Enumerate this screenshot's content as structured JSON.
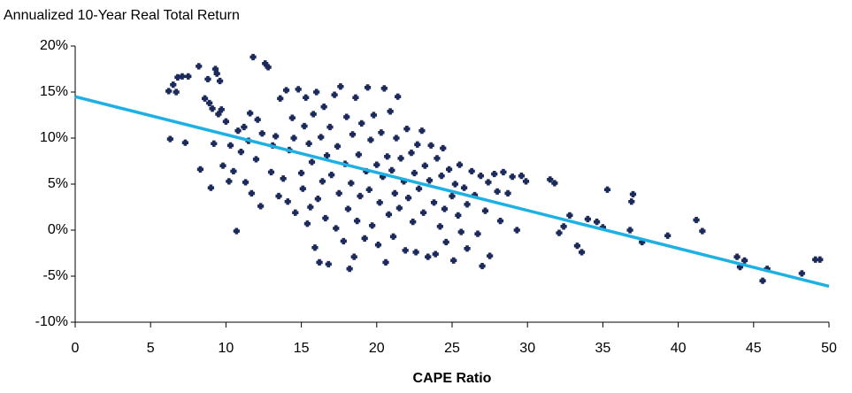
{
  "chart_data": {
    "type": "scatter",
    "title": "Annualized 10-Year Real Total Return",
    "x_label": "CAPE Ratio",
    "xlim": [
      0,
      50
    ],
    "xticks": [
      0,
      5,
      10,
      15,
      20,
      25,
      30,
      35,
      40,
      45,
      50
    ],
    "ylim": [
      -10,
      20
    ],
    "yticks": [
      {
        "value": -10,
        "label": "-10%"
      },
      {
        "value": -5,
        "label": "-5%"
      },
      {
        "value": 0,
        "label": "0%"
      },
      {
        "value": 5,
        "label": "5%"
      },
      {
        "value": 10,
        "label": "10%"
      },
      {
        "value": 15,
        "label": "15%"
      },
      {
        "value": 20,
        "label": "20%"
      }
    ],
    "grid": false,
    "series": [
      {
        "color": "#1b2a5a",
        "x": [
          6.2,
          6.3,
          6.5,
          6.7,
          6.8,
          7.1,
          7.3,
          7.5,
          8.2,
          8.3,
          8.6,
          8.8,
          8.9,
          9.0,
          9.1,
          9.2,
          9.3,
          9.4,
          9.5,
          9.6,
          9.7,
          9.8,
          10.0,
          10.2,
          10.3,
          10.5,
          10.7,
          10.8,
          11.0,
          11.2,
          11.3,
          11.5,
          11.6,
          11.7,
          11.8,
          12.0,
          12.1,
          12.3,
          12.4,
          12.6,
          12.8,
          13.0,
          13.1,
          13.3,
          13.5,
          13.6,
          13.8,
          14.0,
          14.1,
          14.2,
          14.4,
          14.5,
          14.6,
          14.8,
          15.0,
          15.1,
          15.2,
          15.3,
          15.4,
          15.5,
          15.6,
          15.7,
          15.8,
          15.9,
          16.0,
          16.1,
          16.2,
          16.3,
          16.4,
          16.5,
          16.6,
          16.7,
          16.8,
          16.9,
          17.0,
          17.2,
          17.3,
          17.4,
          17.5,
          17.6,
          17.8,
          17.9,
          18.0,
          18.1,
          18.2,
          18.3,
          18.4,
          18.5,
          18.6,
          18.7,
          18.8,
          18.9,
          19.0,
          19.2,
          19.3,
          19.4,
          19.5,
          19.6,
          19.7,
          19.8,
          20.0,
          20.1,
          20.2,
          20.3,
          20.4,
          20.5,
          20.6,
          20.7,
          20.8,
          20.9,
          21.0,
          21.1,
          21.2,
          21.3,
          21.4,
          21.5,
          21.6,
          21.8,
          21.9,
          22.0,
          22.1,
          22.3,
          22.4,
          22.5,
          22.6,
          22.7,
          22.8,
          23.0,
          23.1,
          23.2,
          23.4,
          23.5,
          23.6,
          23.8,
          23.9,
          24.0,
          24.2,
          24.3,
          24.4,
          24.5,
          24.6,
          24.8,
          25.0,
          25.1,
          25.2,
          25.4,
          25.5,
          25.6,
          25.8,
          26.0,
          26.0,
          26.3,
          26.5,
          26.7,
          26.9,
          27.0,
          27.2,
          27.4,
          27.5,
          27.8,
          28.0,
          28.2,
          28.4,
          28.7,
          29.0,
          29.3,
          29.6,
          29.9,
          31.5,
          31.8,
          32.1,
          32.4,
          32.8,
          33.3,
          33.6,
          34.0,
          34.6,
          35.0,
          35.3,
          36.8,
          36.9,
          37.0,
          37.6,
          39.3,
          41.2,
          41.6,
          43.9,
          44.1,
          44.4,
          45.6,
          45.9,
          48.2,
          49.1,
          49.4
        ],
        "values": [
          15.1,
          9.9,
          15.8,
          15.0,
          16.6,
          16.7,
          9.5,
          16.7,
          17.8,
          6.6,
          14.3,
          16.4,
          13.8,
          4.6,
          13.2,
          9.4,
          17.5,
          17.0,
          12.6,
          16.2,
          13.1,
          7.0,
          11.8,
          5.3,
          9.2,
          6.4,
          -0.1,
          10.8,
          8.5,
          11.2,
          5.2,
          9.7,
          12.7,
          4.0,
          18.8,
          7.7,
          12.0,
          2.6,
          10.5,
          18.1,
          17.7,
          6.3,
          9.2,
          10.2,
          3.7,
          14.3,
          5.6,
          15.2,
          3.1,
          8.7,
          12.2,
          10.0,
          1.9,
          15.3,
          6.2,
          4.5,
          11.3,
          14.4,
          0.7,
          9.4,
          2.5,
          7.4,
          12.6,
          -1.9,
          15.0,
          3.4,
          -3.5,
          10.1,
          5.3,
          13.4,
          1.3,
          8.1,
          -3.7,
          11.2,
          6.0,
          14.7,
          0.2,
          9.1,
          4.0,
          15.6,
          -1.2,
          7.2,
          12.3,
          2.3,
          -4.2,
          5.1,
          10.4,
          -2.9,
          14.4,
          1.0,
          8.2,
          3.7,
          11.6,
          -0.9,
          6.4,
          15.5,
          4.4,
          9.8,
          0.5,
          12.5,
          7.1,
          -1.6,
          3.0,
          10.6,
          5.8,
          15.4,
          -3.5,
          8.0,
          1.7,
          12.9,
          6.5,
          -0.7,
          4.0,
          10.0,
          14.5,
          2.4,
          7.8,
          5.3,
          -2.2,
          11.0,
          3.5,
          8.4,
          0.9,
          6.2,
          -2.4,
          9.3,
          4.5,
          10.8,
          1.9,
          7.0,
          -2.9,
          5.4,
          9.2,
          3.0,
          -2.6,
          7.8,
          0.4,
          5.9,
          8.9,
          2.3,
          -1.3,
          6.6,
          3.7,
          -3.3,
          5.0,
          1.6,
          7.1,
          -0.2,
          4.6,
          2.8,
          -2.0,
          6.4,
          3.8,
          -0.4,
          5.9,
          -3.9,
          2.1,
          5.2,
          -2.8,
          6.1,
          4.2,
          1.0,
          6.3,
          4.0,
          5.8,
          0.0,
          5.9,
          5.3,
          5.5,
          5.1,
          -0.3,
          0.4,
          1.6,
          -1.7,
          -2.4,
          1.2,
          0.9,
          0.3,
          4.4,
          0.0,
          3.1,
          3.9,
          -1.3,
          -0.6,
          1.1,
          -0.1,
          -2.9,
          -4.0,
          -3.3,
          -5.5,
          -4.2,
          -4.7,
          -3.2,
          -3.2
        ]
      }
    ],
    "trendline": {
      "color": "#1cb1e2",
      "x": [
        0,
        50
      ],
      "values": [
        14.5,
        -6.1
      ]
    }
  }
}
